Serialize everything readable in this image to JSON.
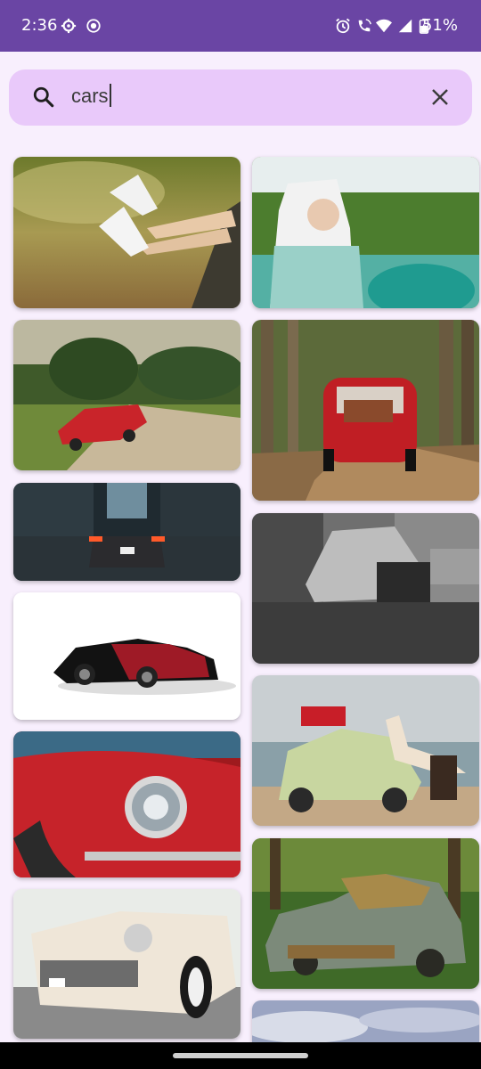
{
  "status_bar": {
    "time": "2:36",
    "battery": "51%",
    "left_icons": [
      "settings-icon",
      "record-icon"
    ],
    "right_icons": [
      "alarm-icon",
      "wifi-calling-icon",
      "wifi-icon",
      "signal-icon",
      "battery-charging-icon"
    ]
  },
  "search": {
    "query": "cars",
    "icon": "search-icon",
    "clear_icon": "close-icon"
  },
  "results": {
    "left_column": [
      "feet-out-car-window",
      "red-classic-convertible-road",
      "sports-car-wet-street-night",
      "bugatti-red-black-white",
      "red-mustang-headlight-closeup",
      "white-cadillac-closeup"
    ],
    "right_column": [
      "woman-driving-vintage-car",
      "red-fiat-forest-road",
      "beetle-black-and-white-garage",
      "beetle-woman-beach",
      "rusty-abandoned-car-forest",
      "sky-clouds-partial"
    ]
  },
  "colors": {
    "status_bar_bg": "#6a45a4",
    "search_bg": "#e9c9fa",
    "page_bg": "#f8effd"
  }
}
